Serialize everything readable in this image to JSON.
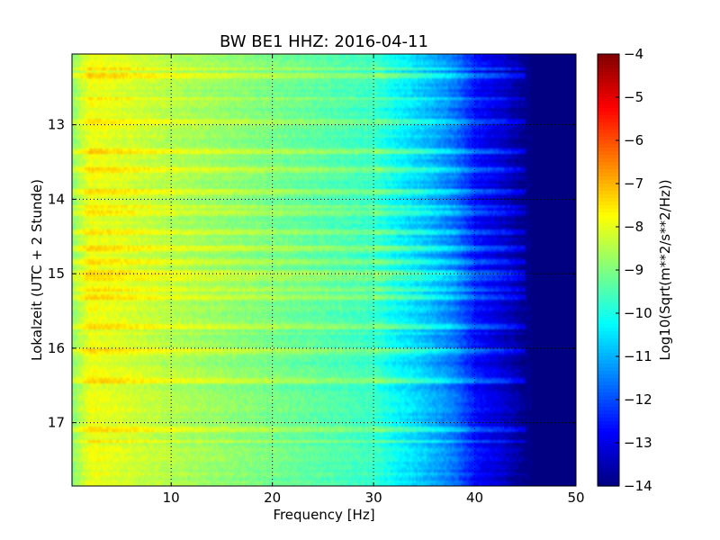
{
  "chart_data": {
    "type": "heatmap",
    "title": "BW BE1 HHZ: 2016-04-11",
    "xlabel": "Frequency [Hz]",
    "ylabel": "Lokalzeit (UTC + 2 Stunde)",
    "xlim": [
      0.2,
      50
    ],
    "ylim": [
      17.85,
      12.05
    ],
    "y_inverted": true,
    "grid": "dotted",
    "x_ticks": [
      10,
      20,
      30,
      40,
      50
    ],
    "x_tick_labels": [
      "10",
      "20",
      "30",
      "40",
      "50"
    ],
    "y_ticks": [
      13,
      14,
      15,
      16,
      17
    ],
    "y_tick_labels": [
      "13",
      "14",
      "15",
      "16",
      "17"
    ],
    "colormap": "jet",
    "colorbar": {
      "label": "Log10(Sqrt(m**2/s**2/Hz))",
      "range": [
        -14,
        -4
      ],
      "ticks": [
        -4,
        -5,
        -6,
        -7,
        -8,
        -9,
        -10,
        -11,
        -12,
        -13,
        -14
      ],
      "tick_labels": [
        "−4",
        "−5",
        "−6",
        "−7",
        "−8",
        "−9",
        "−10",
        "−11",
        "−12",
        "−13",
        "−14"
      ]
    },
    "spectrum_profile": {
      "frequency_hz": [
        0.2,
        2,
        5,
        10,
        15,
        20,
        25,
        30,
        32,
        35,
        38,
        40,
        43,
        45,
        50
      ],
      "log_amplitude": [
        -8.9,
        -7.9,
        -8.1,
        -8.5,
        -8.8,
        -9.1,
        -9.4,
        -9.7,
        -10.2,
        -10.8,
        -11.6,
        -12.6,
        -13.3,
        -13.9,
        -14
      ]
    },
    "strong_bands_hour": [
      12.25,
      12.35,
      12.65,
      12.95,
      13.35,
      13.6,
      13.9,
      14.1,
      14.2,
      14.45,
      14.65,
      14.85,
      15.0,
      15.05,
      15.2,
      15.3,
      15.7,
      16.05,
      16.45,
      17.1,
      17.25
    ]
  }
}
